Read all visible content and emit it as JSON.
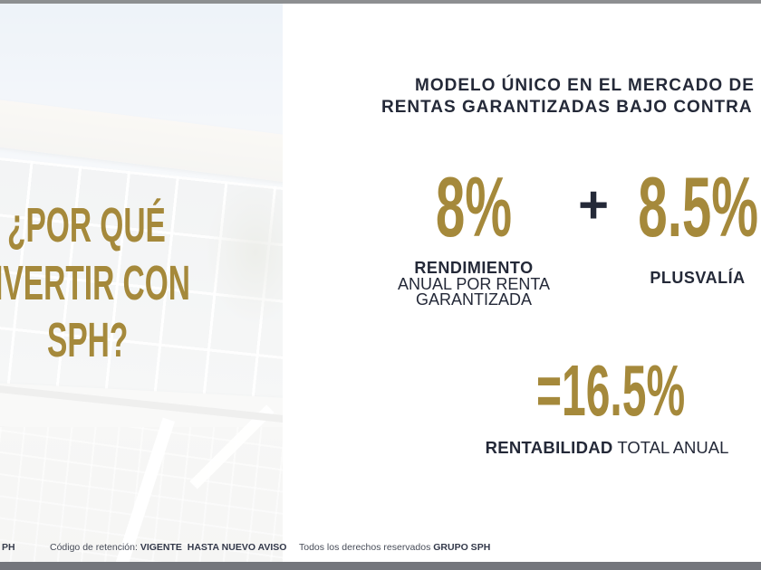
{
  "left_panel": {
    "title_line1": "¿POR QUÉ",
    "title_line2": "INVERTIR CON",
    "title_line3": "SPH?"
  },
  "header": {
    "line1": "MODELO ÚNICO EN EL MERCADO DE",
    "line2": "RENTAS GARANTIZADAS BAJO CONTRA"
  },
  "metrics": {
    "yield_value": "8%",
    "yield_label_bold": "RENDIMIENTO",
    "yield_label_line2": "ANUAL POR RENTA",
    "yield_label_line3": "GARANTIZADA",
    "plus": "+",
    "gain_value": "8.5%",
    "gain_label": "PLUSVALÍA",
    "total_value": "=16.5%",
    "total_label_bold": "RENTABILIDAD",
    "total_label_rest": "TOTAL ANUAL"
  },
  "footer": {
    "brand_left": "PH",
    "retention_label": "Código de retención:",
    "retention_value": "VIGENTE  HASTA NUEVO AVISO",
    "rights_label": "Todos los derechos reservados",
    "rights_brand": "GRUPO SPH"
  },
  "colors": {
    "gold": "#a5893b",
    "navy": "#242938"
  }
}
